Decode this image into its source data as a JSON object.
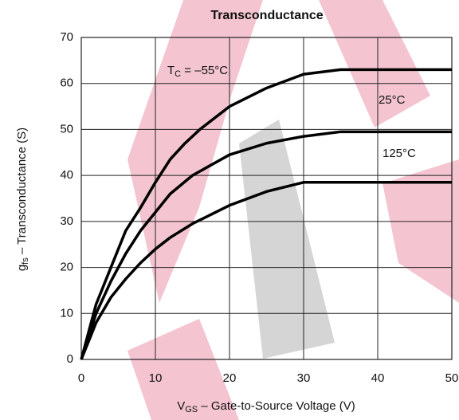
{
  "chart_data": {
    "type": "line",
    "title": "Transconductance",
    "xlabel": {
      "symbol": "V",
      "subscript": "GS",
      "text": " – Gate-to-Source Voltage (V)"
    },
    "ylabel": {
      "symbol": "g",
      "subscript": "fs",
      "text": " – Transconductance (S)"
    },
    "legend_prefix": {
      "symbol": "T",
      "subscript": "C",
      "relation": " = "
    },
    "xlim": [
      0,
      50
    ],
    "xticks": [
      0,
      10,
      20,
      30,
      40,
      50
    ],
    "ylim": [
      0,
      70
    ],
    "yticks": [
      0,
      10,
      20,
      30,
      40,
      50,
      60,
      70
    ],
    "grid": true,
    "series": [
      {
        "name": "–55°C",
        "color": "#000000",
        "x": [
          0,
          1,
          2,
          4,
          6,
          8,
          10,
          12,
          14,
          16,
          20,
          25,
          30,
          35,
          40,
          50
        ],
        "values": [
          0,
          6,
          12,
          20,
          28,
          33,
          38.5,
          43.5,
          47,
          50,
          55,
          59,
          62,
          63,
          63,
          63
        ]
      },
      {
        "name": "25°C",
        "color": "#000000",
        "x": [
          0,
          1,
          2,
          4,
          6,
          8,
          10,
          12,
          15,
          20,
          25,
          30,
          35,
          40,
          50
        ],
        "values": [
          0,
          5,
          10,
          17,
          23,
          28,
          32,
          36,
          40,
          44.5,
          47,
          48.5,
          49.5,
          49.5,
          49.5
        ]
      },
      {
        "name": "125°C",
        "color": "#000000",
        "x": [
          0,
          1,
          2,
          4,
          6,
          8,
          10,
          12,
          15,
          20,
          25,
          30,
          40,
          50
        ],
        "values": [
          0,
          4,
          8,
          13.5,
          17.5,
          21,
          24,
          26.5,
          29.5,
          33.5,
          36.5,
          38.5,
          38.5,
          38.5
        ]
      }
    ]
  }
}
